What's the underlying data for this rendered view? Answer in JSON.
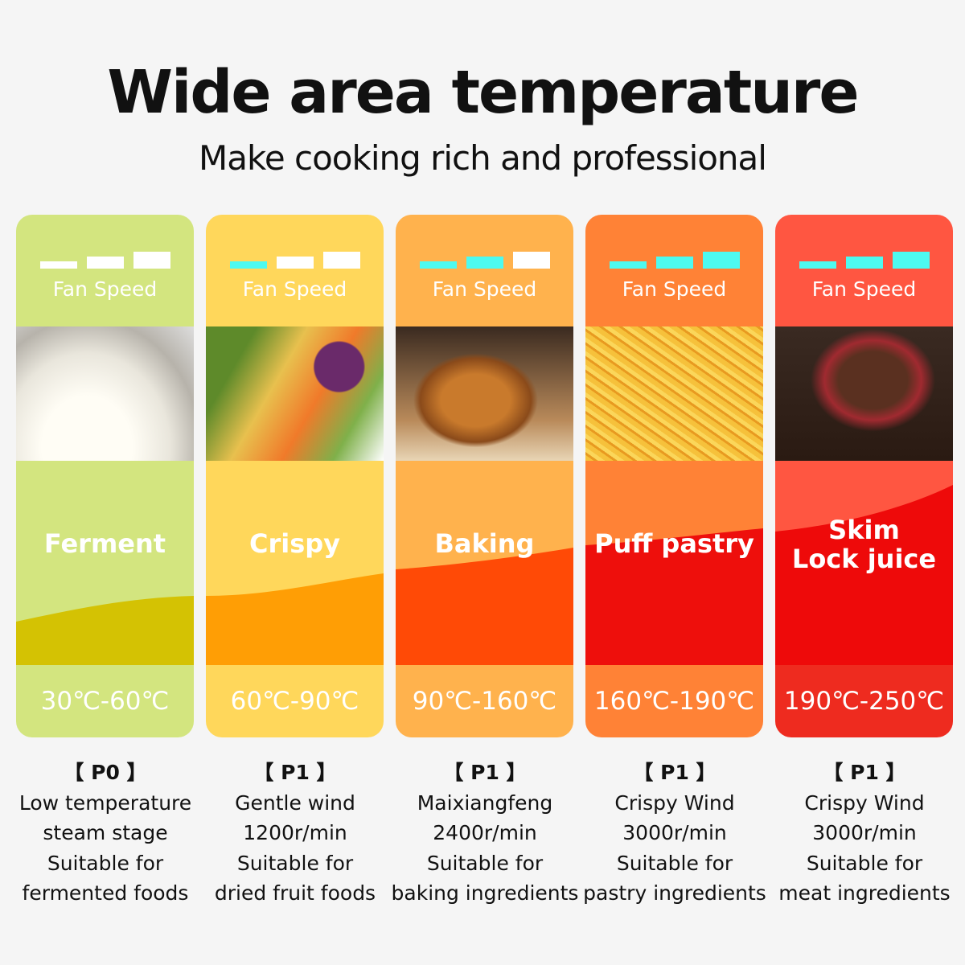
{
  "title": "Wide area temperature",
  "subtitle": "Make cooking rich and professional",
  "fan_label": "Fan Speed",
  "active_color": "#4dfaf0",
  "cards": [
    {
      "mode": "Ferment",
      "temp": "30℃-60℃",
      "fan_level": 0,
      "image": "milk-yogurt-photo",
      "colors": {
        "head": "#d3e57f",
        "wave": "#d4c203",
        "temp": "#d3e57f"
      },
      "desc": [
        "【 P0 】",
        "Low temperature",
        "steam stage",
        "Suitable for",
        "fermented foods"
      ]
    },
    {
      "mode": "Crispy",
      "temp": "60℃-90℃",
      "fan_level": 1,
      "image": "dried-fruit-vegetable-chips-photo",
      "colors": {
        "head": "#ffd75b",
        "wave": "#ff9e05",
        "temp": "#ffd75b"
      },
      "desc": [
        "【 P1 】",
        "Gentle wind",
        "1200r/min",
        "Suitable for",
        "dried fruit foods"
      ]
    },
    {
      "mode": "Baking",
      "temp": "90℃-160℃",
      "fan_level": 2,
      "image": "croissant-photo",
      "colors": {
        "head": "#ffb24d",
        "wave": "#ff4a06",
        "temp": "#ffb24d"
      },
      "desc": [
        "【 P1 】",
        "Maixiangfeng",
        "2400r/min",
        "Suitable for",
        "baking ingredients"
      ]
    },
    {
      "mode": "Puff pastry",
      "temp": "160℃-190℃",
      "fan_level": 3,
      "image": "french-fries-photo",
      "colors": {
        "head": "#ff8236",
        "wave": "#ee0f0c",
        "temp": "#ff8236"
      },
      "desc": [
        "【 P1 】",
        "Crispy Wind",
        "3000r/min",
        "Suitable for",
        "pastry ingredients"
      ]
    },
    {
      "mode": "Skim\nLock juice",
      "temp": "190℃-250℃",
      "fan_level": 3,
      "image": "steak-photo",
      "colors": {
        "head": "#ff5641",
        "wave": "#ee0a0a",
        "temp": "#ee2b1f"
      },
      "desc": [
        "【 P1 】",
        "Crispy Wind",
        "3000r/min",
        "Suitable for",
        "meat ingredients"
      ]
    }
  ]
}
